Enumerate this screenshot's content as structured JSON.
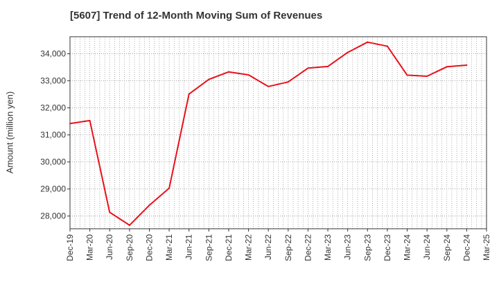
{
  "chart_data": {
    "type": "line",
    "title": "[5607]  Trend of 12-Month Moving Sum of Revenues",
    "ylabel": "Amount (million yen)",
    "xlabel": "",
    "x_tick_labels": [
      "Dec-19",
      "Mar-20",
      "Jun-20",
      "Sep-20",
      "Dec-20",
      "Mar-21",
      "Jun-21",
      "Sep-21",
      "Dec-21",
      "Mar-22",
      "Jun-22",
      "Sep-22",
      "Dec-22",
      "Mar-23",
      "Jun-23",
      "Sep-23",
      "Dec-23",
      "Mar-24",
      "Jun-24",
      "Sep-24",
      "Dec-24",
      "Mar-25"
    ],
    "y_ticks": [
      28000,
      29000,
      30000,
      31000,
      32000,
      33000,
      34000
    ],
    "y_tick_labels": [
      "28,000",
      "29,000",
      "30,000",
      "31,000",
      "32,000",
      "33,000",
      "34,000"
    ],
    "ylim": [
      27530,
      34630
    ],
    "grid": true,
    "series": [
      {
        "color": "#e8101a",
        "x": [
          "Dec-19",
          "Mar-20",
          "Jun-20",
          "Sep-20",
          "Dec-20",
          "Mar-21",
          "Jun-21",
          "Sep-21",
          "Dec-21",
          "Mar-22",
          "Jun-22",
          "Sep-22",
          "Dec-22",
          "Mar-23",
          "Jun-23",
          "Sep-23",
          "Dec-23",
          "Mar-24",
          "Jun-24",
          "Sep-24",
          "Dec-24"
        ],
        "values": [
          31420,
          31530,
          28140,
          27660,
          28400,
          29030,
          32510,
          33050,
          33330,
          33220,
          32790,
          32960,
          33470,
          33530,
          34050,
          34430,
          34280,
          33210,
          33170,
          33520,
          33580
        ]
      }
    ]
  }
}
